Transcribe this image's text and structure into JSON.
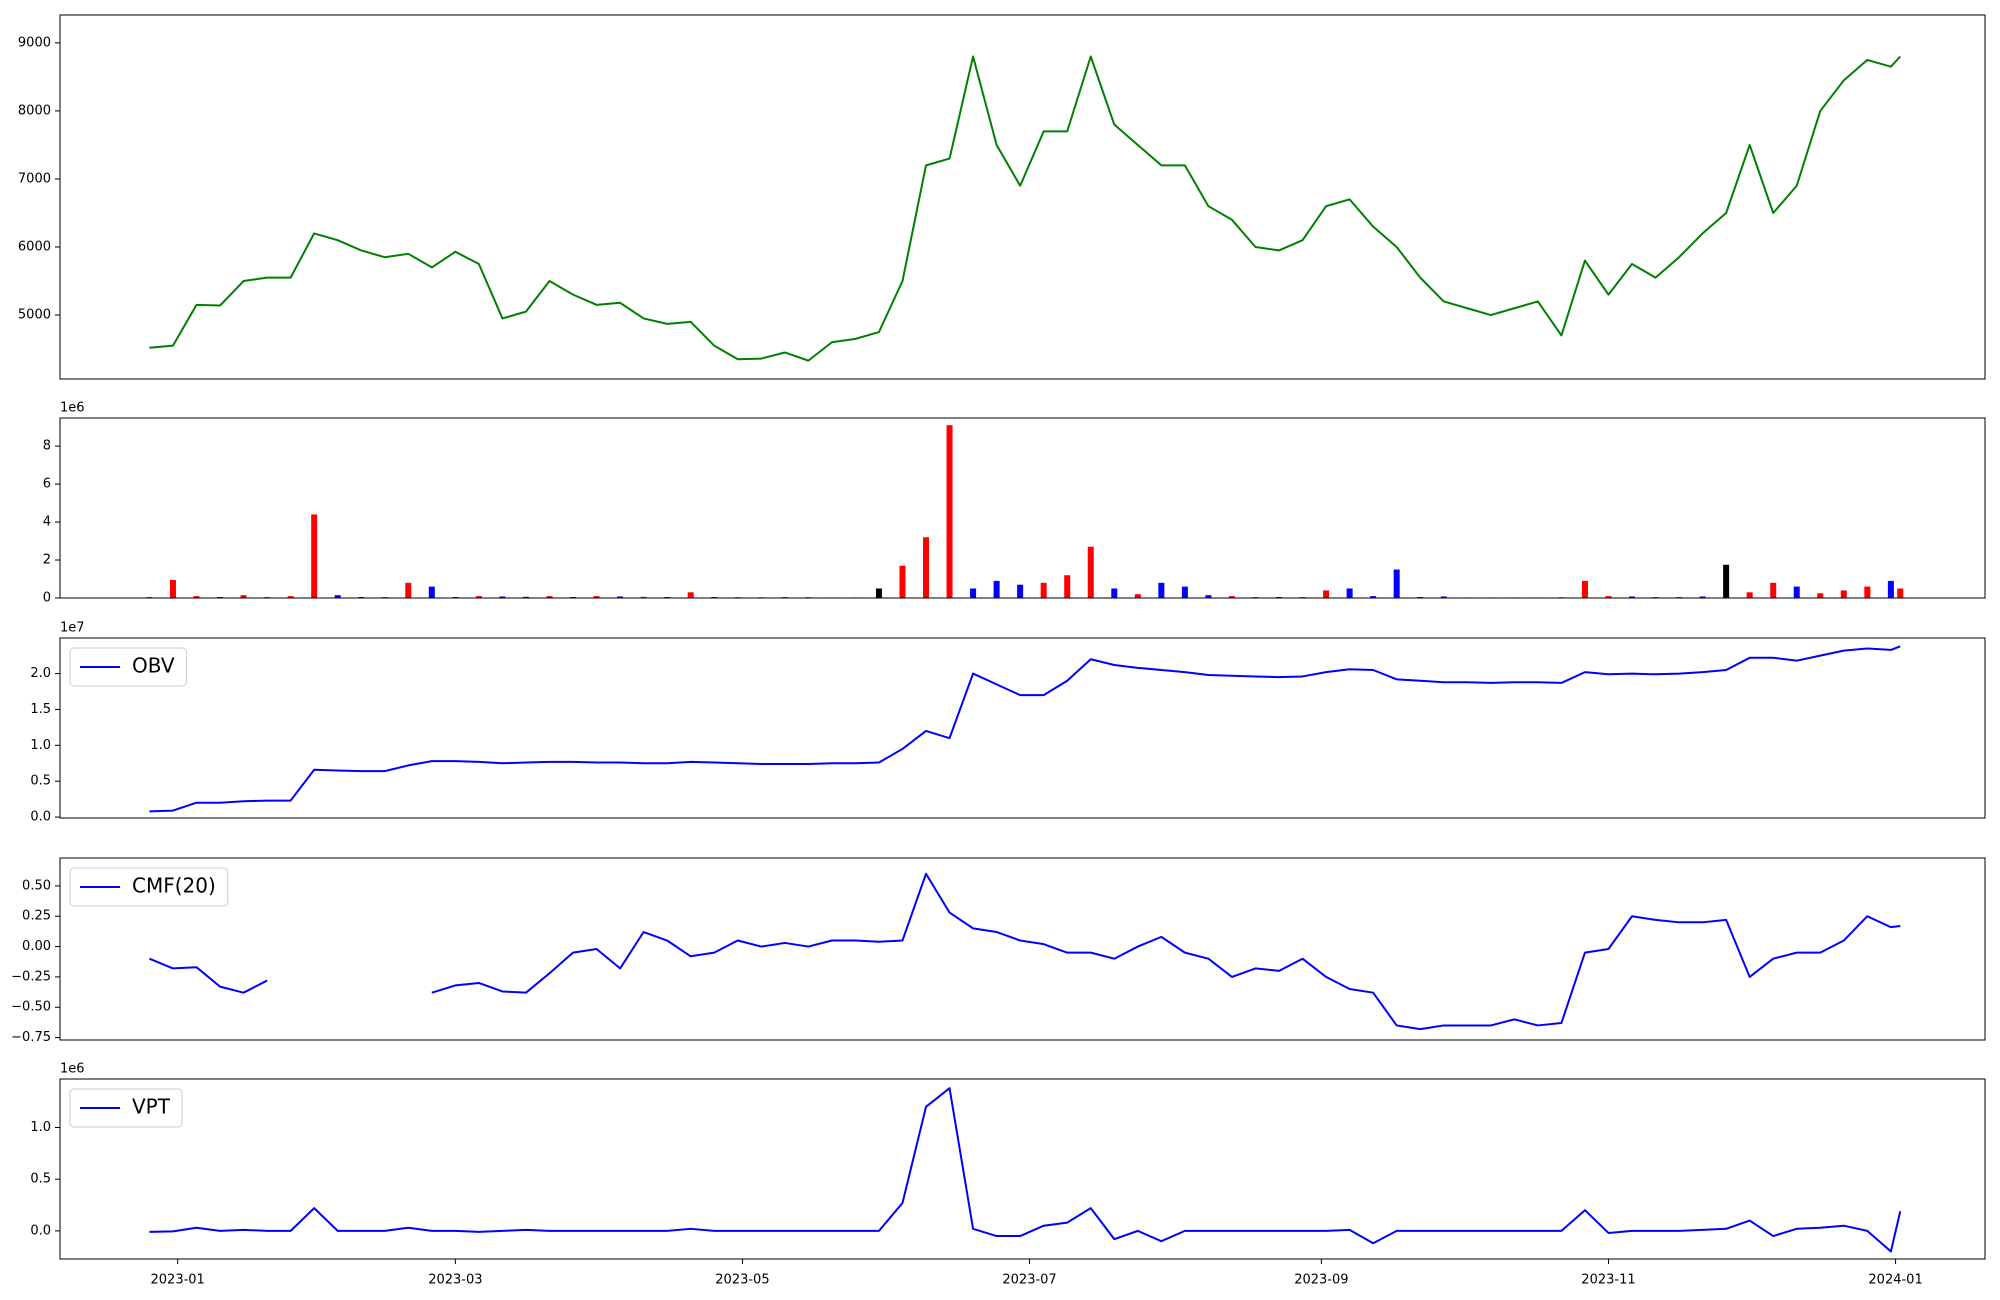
{
  "chart_data": [
    {
      "type": "line",
      "color": "green",
      "x": [
        "2022-12-26",
        "2022-12-31",
        "2023-01-05",
        "2023-01-10",
        "2023-01-15",
        "2023-01-20",
        "2023-01-25",
        "2023-01-30",
        "2023-02-04",
        "2023-02-09",
        "2023-02-14",
        "2023-02-19",
        "2023-02-24",
        "2023-03-01",
        "2023-03-06",
        "2023-03-11",
        "2023-03-16",
        "2023-03-21",
        "2023-03-26",
        "2023-03-31",
        "2023-04-05",
        "2023-04-10",
        "2023-04-15",
        "2023-04-20",
        "2023-04-25",
        "2023-04-30",
        "2023-05-05",
        "2023-05-10",
        "2023-05-15",
        "2023-05-20",
        "2023-05-25",
        "2023-05-30",
        "2023-06-04",
        "2023-06-09",
        "2023-06-14",
        "2023-06-19",
        "2023-06-24",
        "2023-06-29",
        "2023-07-04",
        "2023-07-09",
        "2023-07-14",
        "2023-07-19",
        "2023-07-24",
        "2023-07-29",
        "2023-08-03",
        "2023-08-08",
        "2023-08-13",
        "2023-08-18",
        "2023-08-23",
        "2023-08-28",
        "2023-09-02",
        "2023-09-07",
        "2023-09-12",
        "2023-09-17",
        "2023-09-22",
        "2023-09-27",
        "2023-10-02",
        "2023-10-07",
        "2023-10-12",
        "2023-10-17",
        "2023-10-22",
        "2023-10-27",
        "2023-11-01",
        "2023-11-06",
        "2023-11-11",
        "2023-11-16",
        "2023-11-21",
        "2023-11-26",
        "2023-12-01",
        "2023-12-06",
        "2023-12-11",
        "2023-12-16",
        "2023-12-21",
        "2023-12-26",
        "2023-12-31",
        "2024-01-02"
      ],
      "values": [
        4520,
        4550,
        5150,
        5140,
        5500,
        5550,
        5550,
        6200,
        6100,
        5950,
        5850,
        5900,
        5700,
        5930,
        5750,
        4950,
        5050,
        5500,
        5300,
        5150,
        5180,
        4950,
        4870,
        4900,
        4550,
        4350,
        4360,
        4450,
        4330,
        4600,
        4650,
        4750,
        5500,
        7200,
        7300,
        8800,
        7500,
        6900,
        7700,
        7700,
        8800,
        7800,
        7500,
        7200,
        7200,
        6600,
        6400,
        6000,
        5950,
        6100,
        6600,
        6700,
        6300,
        6000,
        5550,
        5200,
        5100,
        5000,
        5100,
        5200,
        4700,
        5800,
        5300,
        5750,
        5550,
        5850,
        6200,
        6500,
        7500,
        6500,
        6900,
        8000,
        8450,
        8750,
        8650,
        8800
      ],
      "xlim": [
        "2022-12-07",
        "2024-01-20"
      ],
      "ylim": [
        4060,
        9410
      ],
      "yticks": [
        5000,
        6000,
        7000,
        8000,
        9000
      ]
    },
    {
      "type": "bar",
      "offset_label": "1e6",
      "x": [
        "2022-12-26",
        "2022-12-31",
        "2023-01-05",
        "2023-01-10",
        "2023-01-15",
        "2023-01-20",
        "2023-01-25",
        "2023-01-30",
        "2023-02-04",
        "2023-02-09",
        "2023-02-14",
        "2023-02-19",
        "2023-02-24",
        "2023-03-01",
        "2023-03-06",
        "2023-03-11",
        "2023-03-16",
        "2023-03-21",
        "2023-03-26",
        "2023-03-31",
        "2023-04-05",
        "2023-04-10",
        "2023-04-15",
        "2023-04-20",
        "2023-04-25",
        "2023-04-30",
        "2023-05-05",
        "2023-05-10",
        "2023-05-15",
        "2023-05-20",
        "2023-05-25",
        "2023-05-30",
        "2023-06-04",
        "2023-06-09",
        "2023-06-14",
        "2023-06-19",
        "2023-06-24",
        "2023-06-29",
        "2023-07-04",
        "2023-07-09",
        "2023-07-14",
        "2023-07-19",
        "2023-07-24",
        "2023-07-29",
        "2023-08-03",
        "2023-08-08",
        "2023-08-13",
        "2023-08-18",
        "2023-08-23",
        "2023-08-28",
        "2023-09-02",
        "2023-09-07",
        "2023-09-12",
        "2023-09-17",
        "2023-09-22",
        "2023-09-27",
        "2023-10-02",
        "2023-10-07",
        "2023-10-12",
        "2023-10-17",
        "2023-10-22",
        "2023-10-27",
        "2023-11-01",
        "2023-11-06",
        "2023-11-11",
        "2023-11-16",
        "2023-11-21",
        "2023-11-26",
        "2023-12-01",
        "2023-12-06",
        "2023-12-11",
        "2023-12-16",
        "2023-12-21",
        "2023-12-26",
        "2023-12-31",
        "2024-01-02"
      ],
      "values": [
        50000,
        950000,
        100000,
        50000,
        150000,
        50000,
        100000,
        4400000,
        150000,
        50000,
        50000,
        800000,
        600000,
        50000,
        100000,
        80000,
        60000,
        100000,
        50000,
        100000,
        80000,
        60000,
        50000,
        300000,
        50000,
        40000,
        40000,
        50000,
        40000,
        30000,
        30000,
        500000,
        1700000,
        3200000,
        9100000,
        500000,
        900000,
        700000,
        800000,
        1200000,
        2700000,
        500000,
        200000,
        800000,
        600000,
        150000,
        100000,
        50000,
        50000,
        50000,
        400000,
        500000,
        100000,
        1500000,
        50000,
        80000,
        30000,
        30000,
        30000,
        30000,
        40000,
        900000,
        100000,
        80000,
        50000,
        50000,
        80000,
        1750000,
        300000,
        800000,
        600000,
        250000,
        400000,
        600000,
        900000,
        500000
      ],
      "colors": [
        "red",
        "red",
        "red",
        "blue",
        "red",
        "red",
        "red",
        "red",
        "blue",
        "blue",
        "red",
        "red",
        "blue",
        "blue",
        "red",
        "blue",
        "blue",
        "red",
        "blue",
        "red",
        "blue",
        "red",
        "blue",
        "red",
        "blue",
        "blue",
        "red",
        "red",
        "blue",
        "red",
        "blue",
        "black",
        "red",
        "red",
        "red",
        "blue",
        "blue",
        "blue",
        "red",
        "red",
        "red",
        "blue",
        "red",
        "blue",
        "blue",
        "blue",
        "red",
        "red",
        "blue",
        "red",
        "red",
        "blue",
        "blue",
        "blue",
        "blue",
        "blue",
        "blue",
        "red",
        "blue",
        "red",
        "red",
        "red",
        "red",
        "blue",
        "red",
        "red",
        "blue",
        "black",
        "red",
        "red",
        "blue",
        "red",
        "red",
        "red",
        "blue",
        "red"
      ],
      "xlim": [
        "2022-12-07",
        "2024-01-20"
      ],
      "ylim": [
        0,
        9480000
      ],
      "yticks": [
        {
          "value": 0,
          "label": "0"
        },
        {
          "value": 2000000,
          "label": "2"
        },
        {
          "value": 4000000,
          "label": "4"
        },
        {
          "value": 6000000,
          "label": "6"
        },
        {
          "value": 8000000,
          "label": "8"
        }
      ]
    },
    {
      "type": "line",
      "offset_label": "1e7",
      "legend": "upper left",
      "x": [
        "2022-12-26",
        "2022-12-31",
        "2023-01-05",
        "2023-01-10",
        "2023-01-15",
        "2023-01-20",
        "2023-01-25",
        "2023-01-30",
        "2023-02-04",
        "2023-02-09",
        "2023-02-14",
        "2023-02-19",
        "2023-02-24",
        "2023-03-01",
        "2023-03-06",
        "2023-03-11",
        "2023-03-16",
        "2023-03-21",
        "2023-03-26",
        "2023-03-31",
        "2023-04-05",
        "2023-04-10",
        "2023-04-15",
        "2023-04-20",
        "2023-04-25",
        "2023-04-30",
        "2023-05-05",
        "2023-05-10",
        "2023-05-15",
        "2023-05-20",
        "2023-05-25",
        "2023-05-30",
        "2023-06-04",
        "2023-06-09",
        "2023-06-14",
        "2023-06-19",
        "2023-06-24",
        "2023-06-29",
        "2023-07-04",
        "2023-07-09",
        "2023-07-14",
        "2023-07-19",
        "2023-07-24",
        "2023-07-29",
        "2023-08-03",
        "2023-08-08",
        "2023-08-13",
        "2023-08-18",
        "2023-08-23",
        "2023-08-28",
        "2023-09-02",
        "2023-09-07",
        "2023-09-12",
        "2023-09-17",
        "2023-09-22",
        "2023-09-27",
        "2023-10-02",
        "2023-10-07",
        "2023-10-12",
        "2023-10-17",
        "2023-10-22",
        "2023-10-27",
        "2023-11-01",
        "2023-11-06",
        "2023-11-11",
        "2023-11-16",
        "2023-11-21",
        "2023-11-26",
        "2023-12-01",
        "2023-12-06",
        "2023-12-11",
        "2023-12-16",
        "2023-12-21",
        "2023-12-26",
        "2023-12-31",
        "2024-01-02"
      ],
      "series": [
        {
          "name": "OBV",
          "color": "blue",
          "values": [
            800000,
            900000,
            2000000,
            2000000,
            2200000,
            2300000,
            2300000,
            6600000,
            6500000,
            6400000,
            6400000,
            7200000,
            7800000,
            7800000,
            7700000,
            7500000,
            7600000,
            7700000,
            7700000,
            7600000,
            7600000,
            7500000,
            7500000,
            7700000,
            7600000,
            7500000,
            7400000,
            7400000,
            7400000,
            7500000,
            7500000,
            7600000,
            9500000,
            12000000,
            11000000,
            20000000,
            18500000,
            17000000,
            17000000,
            19000000,
            22000000,
            21200000,
            20800000,
            20500000,
            20200000,
            19800000,
            19700000,
            19600000,
            19500000,
            19600000,
            20200000,
            20600000,
            20500000,
            19200000,
            19000000,
            18800000,
            18800000,
            18700000,
            18800000,
            18800000,
            18700000,
            20200000,
            19900000,
            20000000,
            19900000,
            20000000,
            20200000,
            20500000,
            22200000,
            22200000,
            21800000,
            22500000,
            23200000,
            23500000,
            23300000,
            23800000
          ]
        }
      ],
      "xlim": [
        "2022-12-07",
        "2024-01-20"
      ],
      "ylim": [
        -130000,
        24960000
      ],
      "yticks": [
        {
          "value": 0,
          "label": "0.0"
        },
        {
          "value": 5000000,
          "label": "0.5"
        },
        {
          "value": 10000000,
          "label": "1.0"
        },
        {
          "value": 15000000,
          "label": "1.5"
        },
        {
          "value": 20000000,
          "label": "2.0"
        }
      ]
    },
    {
      "type": "line",
      "legend": "upper left",
      "x": [
        "2022-12-26",
        "2022-12-31",
        "2023-01-05",
        "2023-01-10",
        "2023-01-15",
        "2023-01-20",
        "2023-01-25",
        "2023-01-30",
        "2023-02-04",
        "2023-02-09",
        "2023-02-14",
        "2023-02-19",
        "2023-02-24",
        "2023-03-01",
        "2023-03-06",
        "2023-03-11",
        "2023-03-16",
        "2023-03-21",
        "2023-03-26",
        "2023-03-31",
        "2023-04-05",
        "2023-04-10",
        "2023-04-15",
        "2023-04-20",
        "2023-04-25",
        "2023-04-30",
        "2023-05-05",
        "2023-05-10",
        "2023-05-15",
        "2023-05-20",
        "2023-05-25",
        "2023-05-30",
        "2023-06-04",
        "2023-06-09",
        "2023-06-14",
        "2023-06-19",
        "2023-06-24",
        "2023-06-29",
        "2023-07-04",
        "2023-07-09",
        "2023-07-14",
        "2023-07-19",
        "2023-07-24",
        "2023-07-29",
        "2023-08-03",
        "2023-08-08",
        "2023-08-13",
        "2023-08-18",
        "2023-08-23",
        "2023-08-28",
        "2023-09-02",
        "2023-09-07",
        "2023-09-12",
        "2023-09-17",
        "2023-09-22",
        "2023-09-27",
        "2023-10-02",
        "2023-10-07",
        "2023-10-12",
        "2023-10-17",
        "2023-10-22",
        "2023-10-27",
        "2023-11-01",
        "2023-11-06",
        "2023-11-11",
        "2023-11-16",
        "2023-11-21",
        "2023-11-26",
        "2023-12-01",
        "2023-12-06",
        "2023-12-11",
        "2023-12-16",
        "2023-12-21",
        "2023-12-26",
        "2023-12-31",
        "2024-01-02"
      ],
      "series": [
        {
          "name": "CMF(20)",
          "color": "blue",
          "values": [
            -0.1,
            -0.18,
            -0.17,
            -0.33,
            -0.38,
            -0.28,
            null,
            null,
            null,
            null,
            null,
            null,
            -0.38,
            -0.32,
            -0.3,
            -0.37,
            -0.38,
            -0.22,
            -0.05,
            -0.02,
            -0.18,
            0.12,
            0.05,
            -0.08,
            -0.05,
            0.05,
            0.0,
            0.03,
            0.0,
            0.05,
            0.05,
            0.04,
            0.05,
            0.6,
            0.28,
            0.15,
            0.12,
            0.05,
            0.02,
            -0.05,
            -0.05,
            -0.1,
            0.0,
            0.08,
            -0.05,
            -0.1,
            -0.25,
            -0.18,
            -0.2,
            -0.1,
            -0.25,
            -0.35,
            -0.38,
            -0.65,
            -0.68,
            -0.65,
            -0.65,
            -0.65,
            -0.6,
            -0.65,
            -0.63,
            -0.05,
            -0.02,
            0.25,
            0.22,
            0.2,
            0.2,
            0.22,
            -0.25,
            -0.1,
            -0.05,
            -0.05,
            0.05,
            0.25,
            0.16,
            0.17
          ]
        }
      ],
      "xlim": [
        "2022-12-07",
        "2024-01-20"
      ],
      "ylim": [
        -0.77,
        0.73
      ],
      "yticks": [
        {
          "value": -0.75,
          "label": "−0.75"
        },
        {
          "value": -0.5,
          "label": "−0.50"
        },
        {
          "value": -0.25,
          "label": "−0.25"
        },
        {
          "value": 0,
          "label": "0.00"
        },
        0.25,
        {
          "value": 0.5,
          "label": "0.50"
        }
      ]
    },
    {
      "type": "line",
      "offset_label": "1e6",
      "legend": "upper left",
      "x": [
        "2022-12-26",
        "2022-12-31",
        "2023-01-05",
        "2023-01-10",
        "2023-01-15",
        "2023-01-20",
        "2023-01-25",
        "2023-01-30",
        "2023-02-04",
        "2023-02-09",
        "2023-02-14",
        "2023-02-19",
        "2023-02-24",
        "2023-03-01",
        "2023-03-06",
        "2023-03-11",
        "2023-03-16",
        "2023-03-21",
        "2023-03-26",
        "2023-03-31",
        "2023-04-05",
        "2023-04-10",
        "2023-04-15",
        "2023-04-20",
        "2023-04-25",
        "2023-04-30",
        "2023-05-05",
        "2023-05-10",
        "2023-05-15",
        "2023-05-20",
        "2023-05-25",
        "2023-05-30",
        "2023-06-04",
        "2023-06-09",
        "2023-06-14",
        "2023-06-19",
        "2023-06-24",
        "2023-06-29",
        "2023-07-04",
        "2023-07-09",
        "2023-07-14",
        "2023-07-19",
        "2023-07-24",
        "2023-07-29",
        "2023-08-03",
        "2023-08-08",
        "2023-08-13",
        "2023-08-18",
        "2023-08-23",
        "2023-08-28",
        "2023-09-02",
        "2023-09-07",
        "2023-09-12",
        "2023-09-17",
        "2023-09-22",
        "2023-09-27",
        "2023-10-02",
        "2023-10-07",
        "2023-10-12",
        "2023-10-17",
        "2023-10-22",
        "2023-10-27",
        "2023-11-01",
        "2023-11-06",
        "2023-11-11",
        "2023-11-16",
        "2023-11-21",
        "2023-11-26",
        "2023-12-01",
        "2023-12-06",
        "2023-12-11",
        "2023-12-16",
        "2023-12-21",
        "2023-12-26",
        "2023-12-31",
        "2024-01-02"
      ],
      "series": [
        {
          "name": "VPT",
          "color": "blue",
          "values": [
            -10000,
            -5000,
            30000,
            0,
            10000,
            0,
            0,
            220000,
            0,
            0,
            0,
            30000,
            0,
            0,
            -10000,
            0,
            10000,
            0,
            0,
            0,
            0,
            0,
            0,
            20000,
            0,
            0,
            0,
            0,
            0,
            0,
            0,
            0,
            270000,
            1200000,
            1380000,
            20000,
            -50000,
            -50000,
            50000,
            80000,
            220000,
            -80000,
            0,
            -100000,
            0,
            0,
            0,
            0,
            0,
            0,
            0,
            10000,
            -120000,
            0,
            0,
            0,
            0,
            0,
            0,
            0,
            0,
            200000,
            -20000,
            0,
            0,
            0,
            10000,
            20000,
            100000,
            -50000,
            20000,
            30000,
            50000,
            0,
            -200000,
            190000
          ]
        }
      ],
      "xlim": [
        "2022-12-07",
        "2024-01-20"
      ],
      "ylim": [
        -272000,
        1469000
      ],
      "yticks": [
        {
          "value": 0,
          "label": "0.0"
        },
        {
          "value": 500000,
          "label": "0.5"
        },
        {
          "value": 1000000,
          "label": "1.0"
        }
      ],
      "xticks": [
        "2023-01",
        "2023-03",
        "2023-05",
        "2023-07",
        "2023-09",
        "2023-11",
        "2024-01"
      ]
    }
  ]
}
